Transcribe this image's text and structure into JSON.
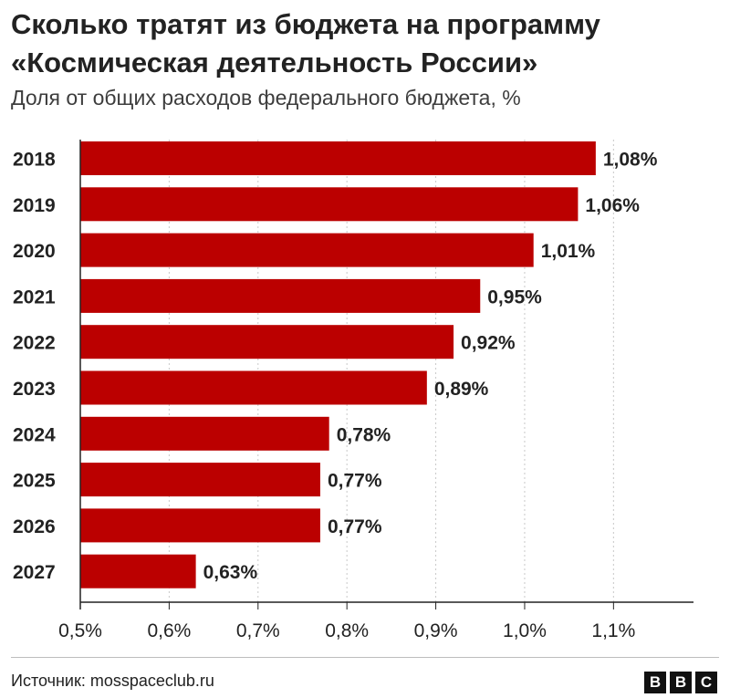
{
  "title": "Сколько тратят из бюджета на программу «Космическая деятельность России»",
  "subtitle": "Доля от общих расходов федерального бюджета, %",
  "source": "Источник: mosspaceclub.ru",
  "logo": [
    "B",
    "B",
    "C"
  ],
  "colors": {
    "bar": "#bb0000",
    "text": "#222222",
    "grid": "#c8c8c8",
    "axis": "#222222"
  },
  "chart_data": {
    "type": "bar",
    "orientation": "horizontal",
    "categories": [
      "2018",
      "2019",
      "2020",
      "2021",
      "2022",
      "2023",
      "2024",
      "2025",
      "2026",
      "2027"
    ],
    "values": [
      1.08,
      1.06,
      1.01,
      0.95,
      0.92,
      0.89,
      0.78,
      0.77,
      0.77,
      0.63
    ],
    "value_labels": [
      "1,08%",
      "1,06%",
      "1,01%",
      "0,95%",
      "0,92%",
      "0,89%",
      "0,78%",
      "0,77%",
      "0,77%",
      "0,63%"
    ],
    "xlim": [
      0.5,
      1.19
    ],
    "x_ticks": [
      0.5,
      0.6,
      0.7,
      0.8,
      0.9,
      1.0,
      1.1
    ],
    "x_tick_labels": [
      "0,5%",
      "0,6%",
      "0,7%",
      "0,8%",
      "0,9%",
      "1,0%",
      "1,1%"
    ],
    "grid": true,
    "xlabel": "",
    "ylabel": ""
  }
}
